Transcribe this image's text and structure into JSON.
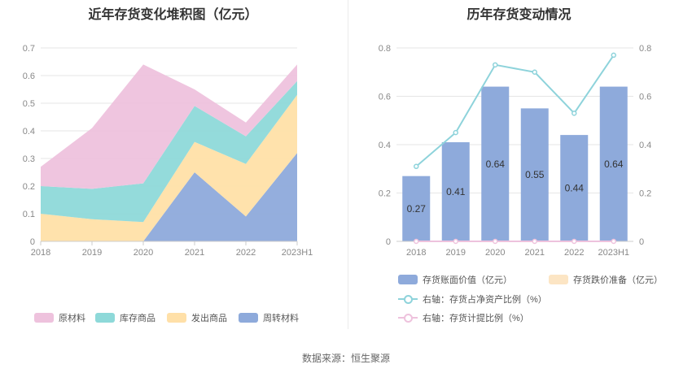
{
  "chart_data": [
    {
      "type": "area",
      "stacked": true,
      "title": "近年存货变化堆积图（亿元）",
      "categories": [
        "2018",
        "2019",
        "2020",
        "2021",
        "2022",
        "2023H1"
      ],
      "ylim": [
        0,
        0.7
      ],
      "yticks": [
        "0",
        "0.1",
        "0.2",
        "0.3",
        "0.4",
        "0.5",
        "0.6",
        "0.7"
      ],
      "series": [
        {
          "name": "周转材料",
          "color": "#8eaadb",
          "values": [
            0,
            0,
            0,
            0.25,
            0.09,
            0.32
          ]
        },
        {
          "name": "发出商品",
          "color": "#ffe0a8",
          "values": [
            0.1,
            0.08,
            0.07,
            0.11,
            0.19,
            0.21
          ]
        },
        {
          "name": "库存商品",
          "color": "#8ed9d9",
          "values": [
            0.1,
            0.11,
            0.14,
            0.13,
            0.1,
            0.05
          ]
        },
        {
          "name": "原材料",
          "color": "#eec2dd",
          "values": [
            0.07,
            0.22,
            0.43,
            0.06,
            0.05,
            0.06
          ]
        }
      ]
    },
    {
      "type": "bar",
      "title": "历年存货变动情况",
      "categories": [
        "2018",
        "2019",
        "2020",
        "2021",
        "2022",
        "2023H1"
      ],
      "ylim": [
        0,
        0.8
      ],
      "yticks": [
        "0",
        "0.2",
        "0.4",
        "0.6",
        "0.8"
      ],
      "y2lim": [
        0,
        0.8
      ],
      "y2ticks": [
        "0",
        "0.2",
        "0.4",
        "0.6",
        "0.8"
      ],
      "series": [
        {
          "name": "存货账面价值（亿元）",
          "kind": "bar",
          "color": "#8eaadb",
          "values": [
            0.27,
            0.41,
            0.64,
            0.55,
            0.44,
            0.64
          ],
          "labels": [
            "0.27",
            "0.41",
            "0.64",
            "0.55",
            "0.44",
            "0.64"
          ]
        },
        {
          "name": "存货跌价准备（亿元）",
          "kind": "bar",
          "color": "#fce5c4",
          "values": [
            0,
            0,
            0,
            0,
            0,
            0
          ]
        },
        {
          "name": "右轴：存货占净资产比例（%）",
          "kind": "line",
          "axis": "right",
          "color": "#8ed3db",
          "values": [
            0.31,
            0.45,
            0.73,
            0.7,
            0.53,
            0.77
          ]
        },
        {
          "name": "右轴：存货计提比例（%）",
          "kind": "line",
          "axis": "right",
          "color": "#eec2dd",
          "values": [
            0,
            0,
            0,
            0,
            0,
            0
          ]
        }
      ]
    }
  ],
  "footer": {
    "source": "数据来源：恒生聚源"
  }
}
